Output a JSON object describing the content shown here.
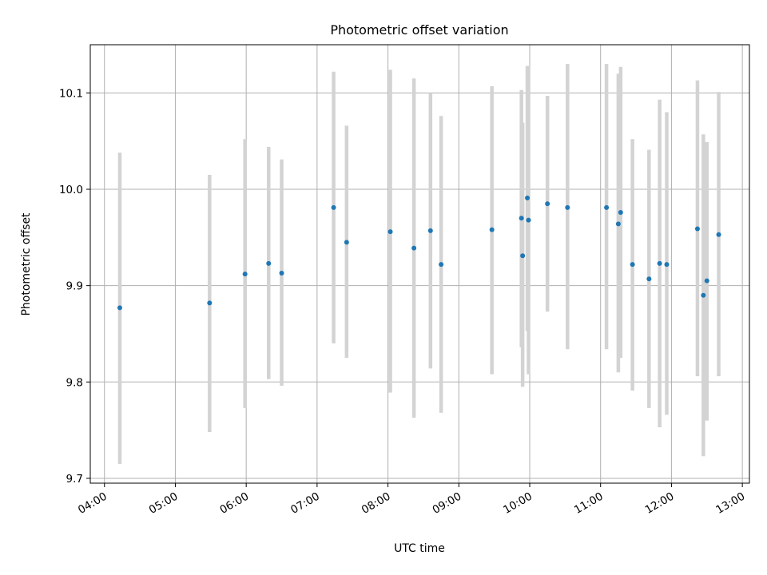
{
  "chart_data": {
    "type": "scatter",
    "title": "Photometric offset variation",
    "xlabel": "UTC time",
    "ylabel": "Photometric offset",
    "x_ticks": [
      "04:00",
      "05:00",
      "06:00",
      "07:00",
      "08:00",
      "09:00",
      "10:00",
      "11:00",
      "12:00",
      "13:00"
    ],
    "y_ticks": [
      "9.7",
      "9.8",
      "9.9",
      "10.0",
      "10.1"
    ],
    "xlim": [
      "03:48",
      "13:06"
    ],
    "ylim": [
      9.695,
      10.15
    ],
    "grid": true,
    "colors": {
      "point": "#1f77b4",
      "errorbar": "#d3d3d3",
      "grid": "#b0b0b0"
    },
    "points": [
      {
        "x": "04:13",
        "y": 9.877,
        "ylo": 9.715,
        "yhi": 10.038
      },
      {
        "x": "05:29",
        "y": 9.882,
        "ylo": 9.748,
        "yhi": 10.015
      },
      {
        "x": "05:59",
        "y": 9.912,
        "ylo": 9.773,
        "yhi": 10.052
      },
      {
        "x": "06:19",
        "y": 9.923,
        "ylo": 9.803,
        "yhi": 10.044
      },
      {
        "x": "06:30",
        "y": 9.913,
        "ylo": 9.796,
        "yhi": 10.031
      },
      {
        "x": "07:14",
        "y": 9.981,
        "ylo": 9.84,
        "yhi": 10.122
      },
      {
        "x": "07:25",
        "y": 9.945,
        "ylo": 9.825,
        "yhi": 10.066
      },
      {
        "x": "08:02",
        "y": 9.956,
        "ylo": 9.789,
        "yhi": 10.124
      },
      {
        "x": "08:22",
        "y": 9.939,
        "ylo": 9.763,
        "yhi": 10.115
      },
      {
        "x": "08:36",
        "y": 9.957,
        "ylo": 9.814,
        "yhi": 10.1
      },
      {
        "x": "08:45",
        "y": 9.922,
        "ylo": 9.768,
        "yhi": 10.076
      },
      {
        "x": "09:28",
        "y": 9.958,
        "ylo": 9.808,
        "yhi": 10.107
      },
      {
        "x": "09:53",
        "y": 9.97,
        "ylo": 9.836,
        "yhi": 10.103
      },
      {
        "x": "09:54",
        "y": 9.931,
        "ylo": 9.795,
        "yhi": 10.069
      },
      {
        "x": "09:58",
        "y": 9.991,
        "ylo": 9.853,
        "yhi": 10.128
      },
      {
        "x": "09:59",
        "y": 9.968,
        "ylo": 9.808,
        "yhi": 10.128
      },
      {
        "x": "10:15",
        "y": 9.985,
        "ylo": 9.873,
        "yhi": 10.097
      },
      {
        "x": "10:32",
        "y": 9.981,
        "ylo": 9.834,
        "yhi": 10.13
      },
      {
        "x": "11:05",
        "y": 9.981,
        "ylo": 9.834,
        "yhi": 10.13
      },
      {
        "x": "11:15",
        "y": 9.964,
        "ylo": 9.81,
        "yhi": 10.12
      },
      {
        "x": "11:17",
        "y": 9.976,
        "ylo": 9.825,
        "yhi": 10.127
      },
      {
        "x": "11:27",
        "y": 9.922,
        "ylo": 9.791,
        "yhi": 10.052
      },
      {
        "x": "11:41",
        "y": 9.907,
        "ylo": 9.773,
        "yhi": 10.041
      },
      {
        "x": "11:50",
        "y": 9.923,
        "ylo": 9.753,
        "yhi": 10.093
      },
      {
        "x": "11:56",
        "y": 9.922,
        "ylo": 9.766,
        "yhi": 10.08
      },
      {
        "x": "12:22",
        "y": 9.959,
        "ylo": 9.806,
        "yhi": 10.113
      },
      {
        "x": "12:27",
        "y": 9.89,
        "ylo": 9.723,
        "yhi": 10.057
      },
      {
        "x": "12:30",
        "y": 9.905,
        "ylo": 9.76,
        "yhi": 10.049
      },
      {
        "x": "12:40",
        "y": 9.953,
        "ylo": 9.806,
        "yhi": 10.101
      }
    ]
  }
}
